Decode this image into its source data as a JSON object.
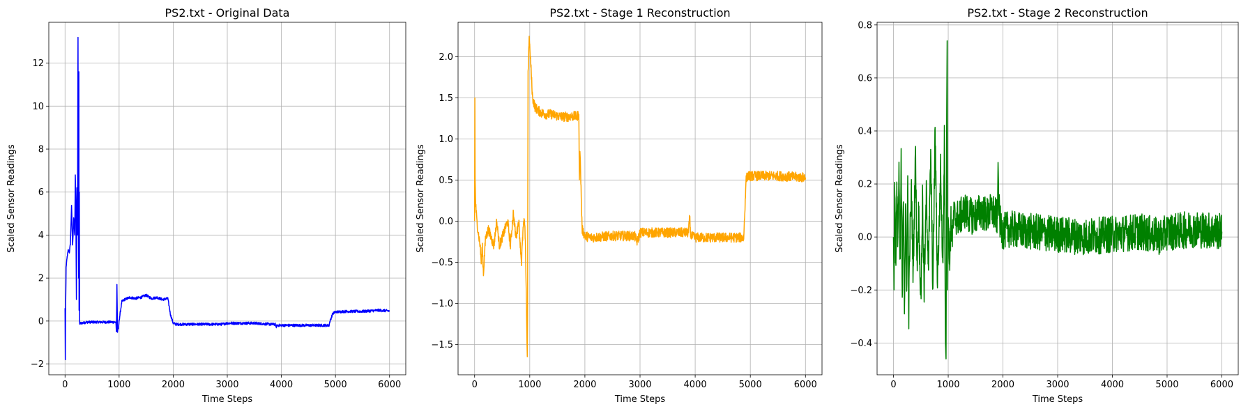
{
  "chart_data": [
    {
      "type": "line",
      "title": "PS2.txt - Original Data",
      "xlabel": "Time Steps",
      "ylabel": "Scaled Sensor Readings",
      "xlim": [
        -300,
        6300
      ],
      "ylim": [
        -2.5,
        13.9
      ],
      "xticks": [
        0,
        1000,
        2000,
        3000,
        4000,
        5000,
        6000
      ],
      "yticks": [
        -2,
        0,
        2,
        4,
        6,
        8,
        10,
        12
      ],
      "grid": true,
      "color": "#0000ff",
      "series": [
        {
          "x": [
            0,
            5,
            10,
            20,
            40,
            60,
            80,
            100,
            120,
            140,
            160,
            180,
            190,
            200,
            210,
            220,
            230,
            240,
            250,
            255,
            260,
            265,
            270,
            275,
            280,
            300,
            400,
            500,
            600,
            700,
            800,
            900,
            940,
            950,
            960,
            970,
            990,
            1000,
            1050,
            1100,
            1200,
            1300,
            1400,
            1500,
            1600,
            1700,
            1800,
            1900,
            1950,
            2000,
            2050,
            2100,
            2500,
            2900,
            3000,
            3500,
            3800,
            3890,
            3900,
            3920,
            4000,
            4500,
            4880,
            4900,
            4950,
            5000,
            5200,
            5500,
            5800,
            6000
          ],
          "y": [
            0.6,
            -1.8,
            0.4,
            2.5,
            3.0,
            3.3,
            3.2,
            3.6,
            5.4,
            3.5,
            4.8,
            4.0,
            6.8,
            5.5,
            1.0,
            6.2,
            4.0,
            13.2,
            2.0,
            11.6,
            0.5,
            6.0,
            -0.1,
            -0.15,
            -0.1,
            -0.1,
            -0.05,
            -0.05,
            -0.05,
            -0.05,
            -0.05,
            -0.05,
            -0.05,
            -0.5,
            1.7,
            -0.5,
            -0.3,
            0.0,
            0.9,
            1.0,
            1.1,
            1.05,
            1.1,
            1.2,
            1.05,
            1.1,
            1.0,
            1.05,
            0.3,
            -0.1,
            -0.15,
            -0.15,
            -0.15,
            -0.15,
            -0.1,
            -0.1,
            -0.15,
            -0.15,
            -0.3,
            -0.2,
            -0.2,
            -0.2,
            -0.2,
            0.0,
            0.35,
            0.42,
            0.45,
            0.45,
            0.5,
            0.47
          ],
          "noise": 0.06
        }
      ]
    },
    {
      "type": "line",
      "title": "PS2.txt - Stage 1 Reconstruction",
      "xlabel": "Time Steps",
      "ylabel": "Scaled Sensor Readings",
      "xlim": [
        -300,
        6300
      ],
      "ylim": [
        -1.87,
        2.42
      ],
      "xticks": [
        0,
        1000,
        2000,
        3000,
        4000,
        5000,
        6000
      ],
      "yticks": [
        -1.5,
        -1.0,
        -0.5,
        0.0,
        0.5,
        1.0,
        1.5,
        2.0
      ],
      "ytick_labels": [
        "−1.5",
        "−1.0",
        "−0.5",
        "0.0",
        "0.5",
        "1.0",
        "1.5",
        "2.0"
      ],
      "grid": true,
      "color": "#ffa500",
      "series": [
        {
          "x": [
            0,
            5,
            10,
            20,
            40,
            60,
            80,
            100,
            120,
            140,
            160,
            180,
            200,
            250,
            300,
            350,
            400,
            450,
            500,
            550,
            600,
            650,
            700,
            750,
            800,
            850,
            880,
            900,
            920,
            940,
            950,
            955,
            960,
            965,
            970,
            990,
            1000,
            1020,
            1050,
            1100,
            1200,
            1300,
            1400,
            1500,
            1600,
            1700,
            1800,
            1850,
            1890,
            1900,
            1910,
            1950,
            2000,
            2100,
            2500,
            2900,
            2950,
            3000,
            3500,
            3880,
            3900,
            3920,
            4000,
            4500,
            4880,
            4900,
            4920,
            4950,
            5000,
            5500,
            6000
          ],
          "y": [
            0.0,
            1.5,
            0.5,
            0.2,
            0.0,
            -0.1,
            -0.2,
            -0.3,
            -0.5,
            -0.3,
            -0.65,
            -0.4,
            -0.2,
            -0.1,
            -0.2,
            -0.3,
            0.0,
            -0.3,
            -0.2,
            -0.1,
            0.0,
            -0.3,
            0.1,
            -0.2,
            0.0,
            -0.5,
            -0.1,
            0.0,
            -0.2,
            -1.0,
            -1.5,
            -1.65,
            -1.2,
            0.2,
            1.8,
            2.25,
            2.1,
            1.9,
            1.5,
            1.38,
            1.32,
            1.3,
            1.3,
            1.28,
            1.27,
            1.27,
            1.28,
            1.27,
            1.3,
            0.5,
            0.9,
            -0.1,
            -0.18,
            -0.2,
            -0.18,
            -0.18,
            -0.25,
            -0.14,
            -0.14,
            -0.14,
            0.05,
            -0.18,
            -0.2,
            -0.2,
            -0.2,
            0.1,
            0.5,
            0.55,
            0.55,
            0.55,
            0.53
          ],
          "noise": 0.06
        }
      ]
    },
    {
      "type": "line",
      "title": "PS2.txt - Stage 2 Reconstruction",
      "xlabel": "Time Steps",
      "ylabel": "Scaled Sensor Readings",
      "xlim": [
        -300,
        6300
      ],
      "ylim": [
        -0.52,
        0.81
      ],
      "xticks": [
        0,
        1000,
        2000,
        3000,
        4000,
        5000,
        6000
      ],
      "yticks": [
        -0.4,
        -0.2,
        0.0,
        0.2,
        0.4,
        0.6,
        0.8
      ],
      "ytick_labels": [
        "−0.4",
        "−0.2",
        "0.0",
        "0.2",
        "0.4",
        "0.6",
        "0.8"
      ],
      "grid": true,
      "color": "#008000",
      "series": [
        {
          "x": [
            0,
            10,
            20,
            40,
            60,
            80,
            100,
            120,
            140,
            160,
            180,
            200,
            220,
            240,
            260,
            280,
            300,
            330,
            360,
            400,
            430,
            460,
            500,
            530,
            560,
            600,
            640,
            680,
            720,
            760,
            800,
            830,
            860,
            900,
            930,
            950,
            960,
            970,
            980,
            990,
            1000,
            1020,
            1050,
            1080,
            1100,
            1200,
            1300,
            1400,
            1500,
            1600,
            1700,
            1800,
            1900,
            1910,
            1930,
            1950,
            2000,
            2100,
            2500,
            3000,
            3500,
            4000,
            4500,
            4900,
            5000,
            5100,
            5500,
            6000
          ],
          "y": [
            0.0,
            -0.2,
            0.25,
            -0.1,
            0.15,
            0.0,
            0.25,
            -0.15,
            0.3,
            -0.27,
            0.2,
            -0.25,
            0.1,
            -0.2,
            0.2,
            -0.28,
            0.0,
            0.18,
            -0.15,
            0.34,
            -0.1,
            0.1,
            -0.24,
            0.15,
            -0.2,
            0.15,
            -0.1,
            0.3,
            -0.2,
            0.41,
            -0.15,
            0.0,
            0.25,
            -0.1,
            0.36,
            -0.4,
            -0.46,
            0.35,
            0.74,
            -0.2,
            0.1,
            -0.1,
            0.05,
            0.0,
            0.08,
            0.07,
            0.1,
            0.08,
            0.08,
            0.1,
            0.08,
            0.1,
            0.07,
            0.27,
            0.1,
            0.05,
            0.02,
            0.03,
            0.02,
            0.01,
            0.0,
            0.01,
            0.02,
            0.0,
            0.02,
            0.02,
            0.03,
            0.02
          ],
          "noise": 0.07
        }
      ]
    }
  ]
}
